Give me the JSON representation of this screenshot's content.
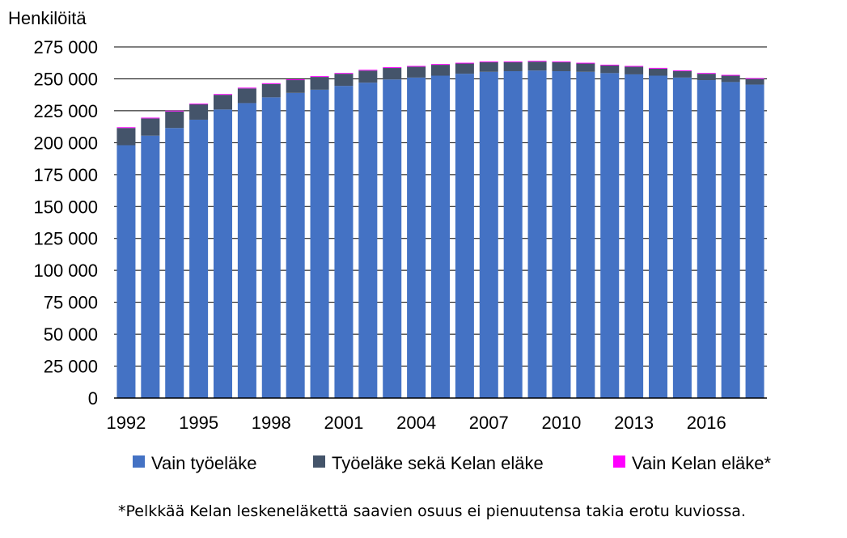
{
  "chart_data": {
    "type": "bar",
    "stacked": true,
    "title": "",
    "ylabel": "Henkilöitä",
    "xlabel": "",
    "ylim": [
      0,
      275000
    ],
    "y_ticks": [
      0,
      25000,
      50000,
      75000,
      100000,
      125000,
      150000,
      175000,
      200000,
      225000,
      250000,
      275000
    ],
    "y_tick_labels": [
      "0",
      "25 000",
      "50 000",
      "75 000",
      "100 000",
      "125 000",
      "150 000",
      "175 000",
      "200 000",
      "225 000",
      "250 000",
      "275 000"
    ],
    "grid": "horizontal",
    "categories": [
      1992,
      1993,
      1994,
      1995,
      1996,
      1997,
      1998,
      1999,
      2000,
      2001,
      2002,
      2003,
      2004,
      2005,
      2006,
      2007,
      2008,
      2009,
      2010,
      2011,
      2012,
      2013,
      2014,
      2015,
      2016,
      2017,
      2018
    ],
    "x_tick_labels": [
      "1992",
      "1995",
      "1998",
      "2001",
      "2004",
      "2007",
      "2010",
      "2013",
      "2016"
    ],
    "series": [
      {
        "name": "Vain työeläke",
        "color": "#4472C4",
        "values": [
          198000,
          205500,
          211500,
          218000,
          226000,
          231000,
          235500,
          239000,
          241500,
          244500,
          247000,
          249500,
          251000,
          252500,
          254000,
          255500,
          256000,
          256500,
          256000,
          255500,
          254500,
          253500,
          252500,
          251000,
          249000,
          247500,
          245500
        ]
      },
      {
        "name": "Työeläke sekä Kelan eläke",
        "color": "#44546A",
        "values": [
          13500,
          13500,
          13000,
          12000,
          11500,
          11500,
          10500,
          10000,
          10000,
          9500,
          9500,
          9000,
          8500,
          8500,
          8000,
          7500,
          7000,
          7000,
          7000,
          6500,
          6000,
          6000,
          5500,
          5000,
          5000,
          5000,
          4500
        ]
      },
      {
        "name": "Vain Kelan eläke*",
        "color": "#FF00FF",
        "values": [
          600,
          600,
          600,
          600,
          600,
          600,
          600,
          600,
          600,
          600,
          600,
          600,
          600,
          600,
          600,
          600,
          600,
          600,
          600,
          600,
          600,
          600,
          600,
          600,
          600,
          600,
          600
        ]
      }
    ],
    "legend_position": "bottom",
    "footnote": "*Pelkkää Kelan leskeneläkettä saavien osuus ei pienuutensa takia erotu kuviossa."
  }
}
